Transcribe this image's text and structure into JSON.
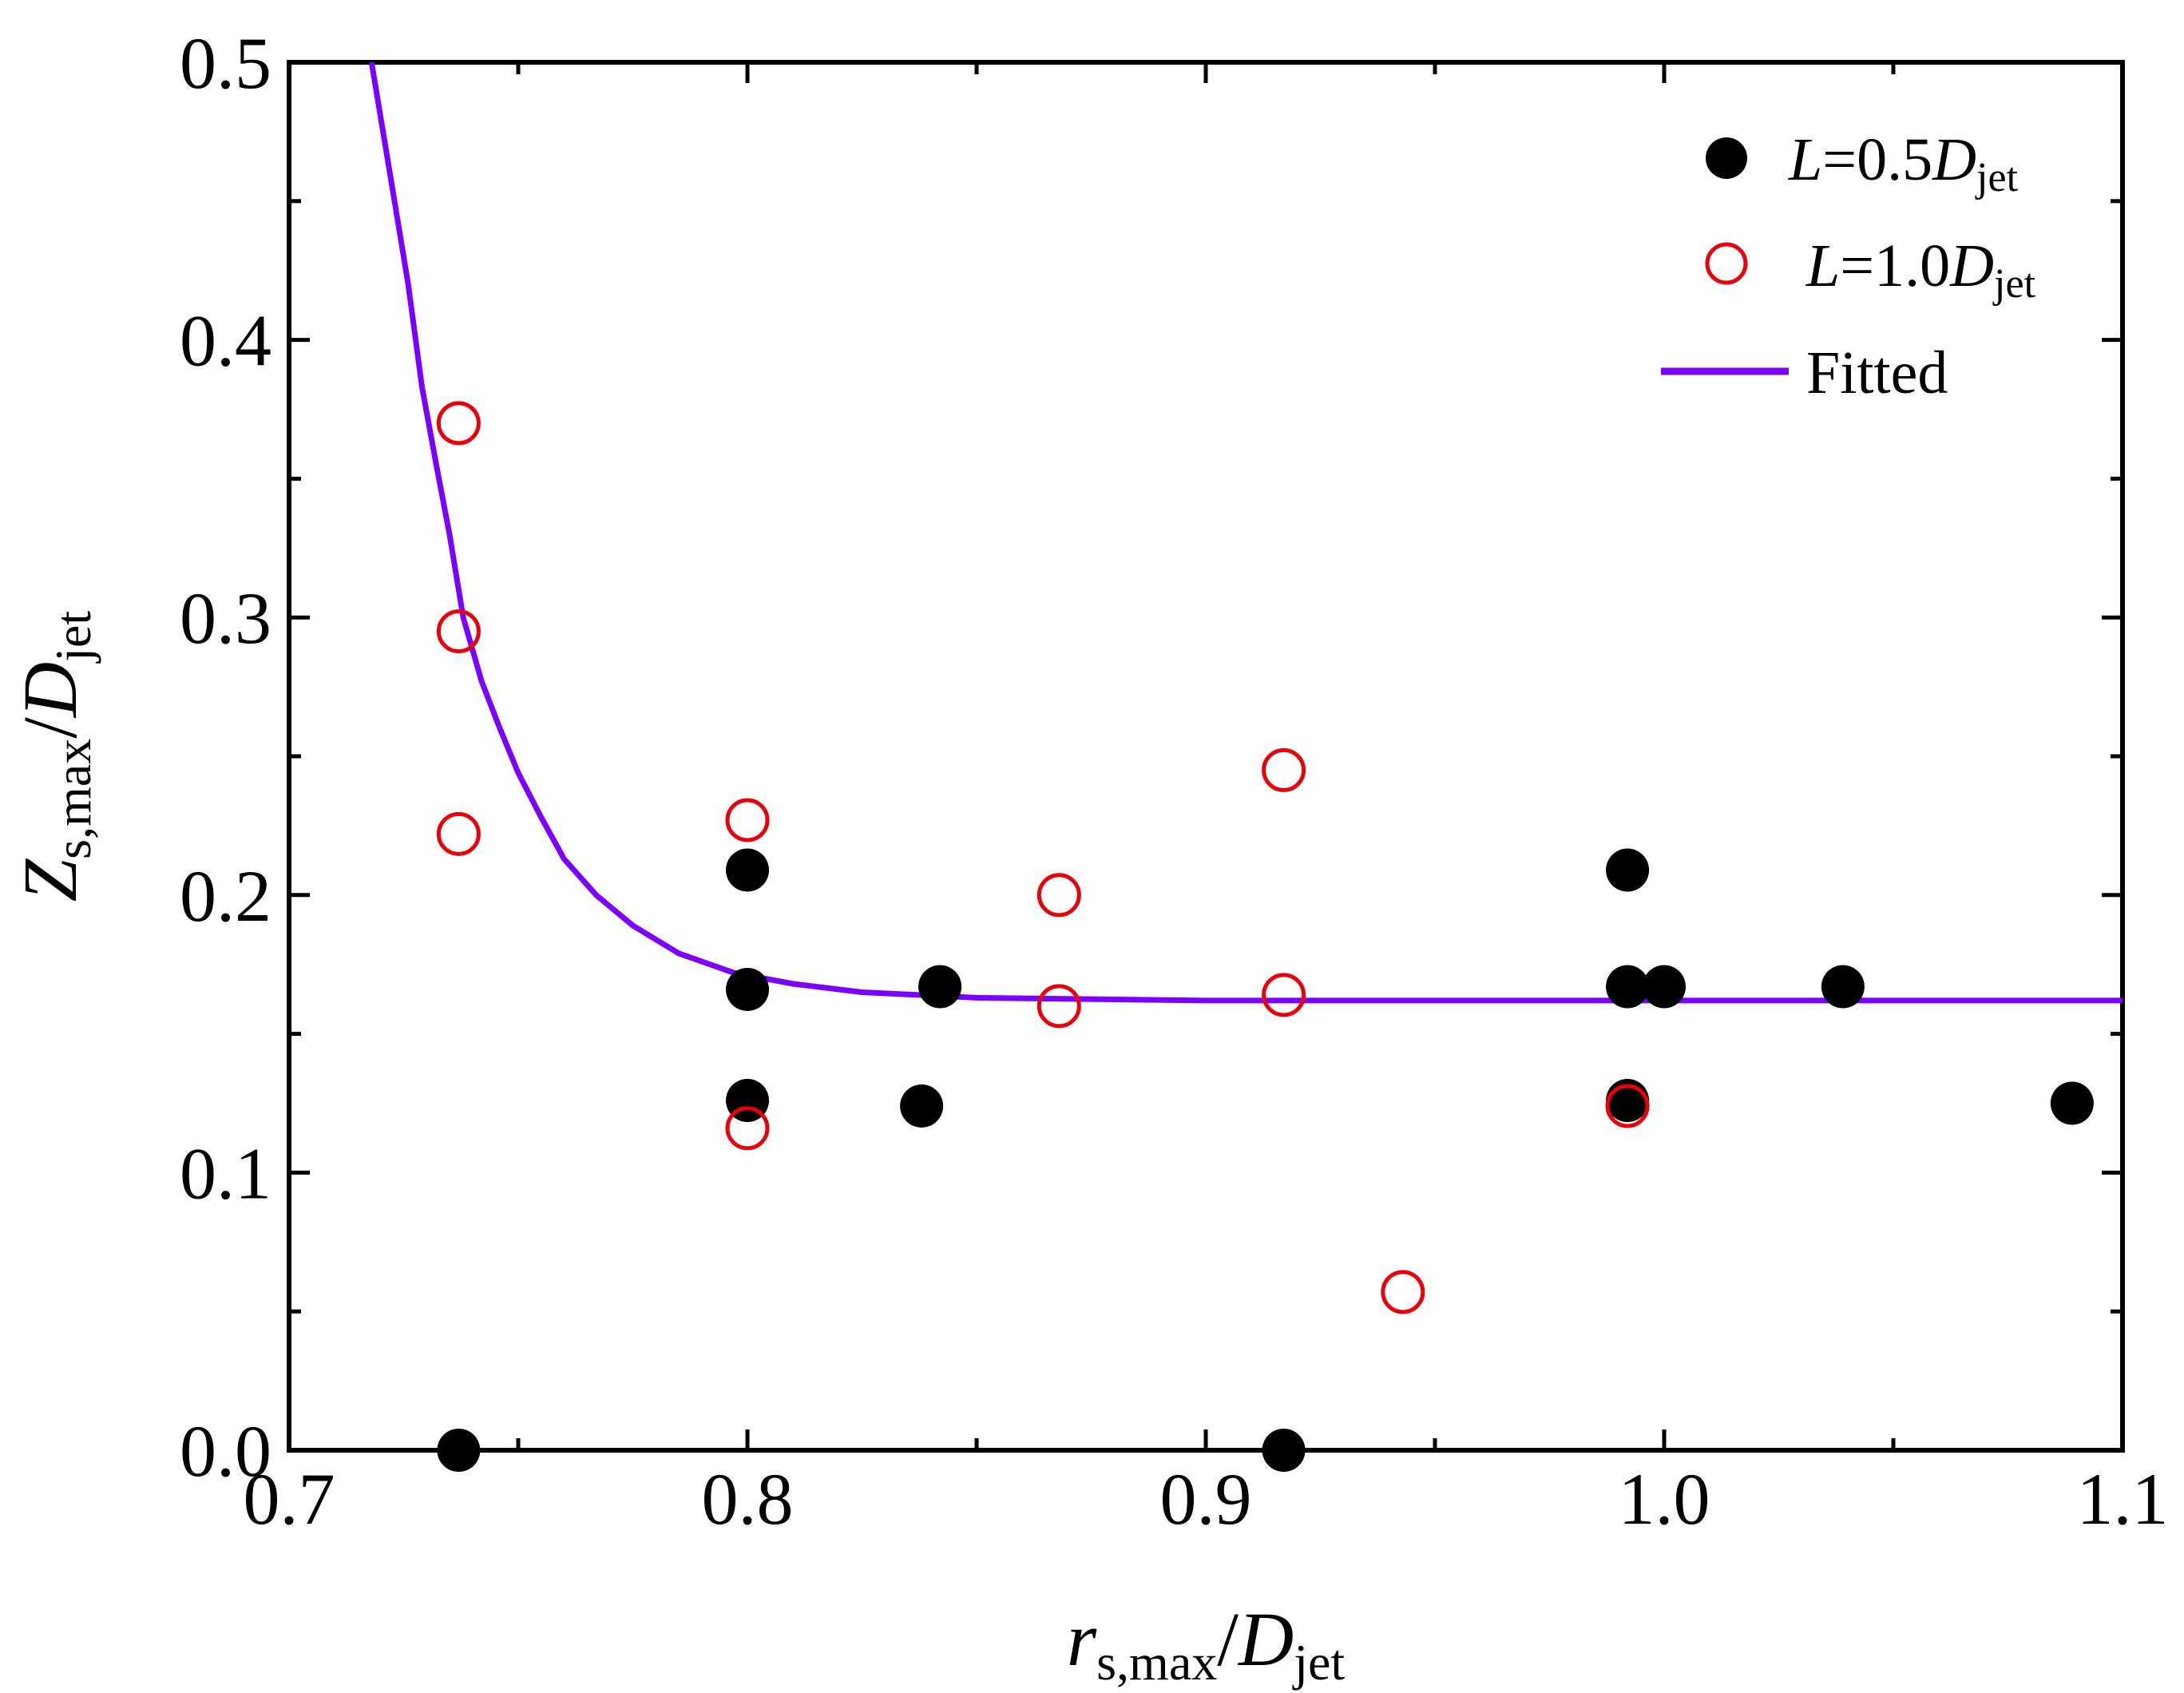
{
  "chart_data": {
    "type": "scatter",
    "xlim": [
      0.7,
      1.1
    ],
    "ylim": [
      0.0,
      0.5
    ],
    "x_ticks": [
      "0.7",
      "0.8",
      "0.9",
      "1.0",
      "1.1"
    ],
    "y_ticks": [
      "0.0",
      "0.1",
      "0.2",
      "0.3",
      "0.4",
      "0.5"
    ],
    "xlabel": {
      "main": "r",
      "sub": "s,max",
      "mid": "/",
      "main2": "D",
      "sub2": "jet"
    },
    "ylabel": {
      "main": "Z",
      "sub": "s,max",
      "mid": "/",
      "main2": "D",
      "sub2": "jet"
    },
    "legend_position": "top-right",
    "series": [
      {
        "name": "L=0.5Djet",
        "legend": {
          "italic1": "L",
          "text": "=0.5",
          "italic2": "D",
          "sub": "jet"
        },
        "marker": "filled-circle",
        "color": "#000000",
        "points": [
          [
            0.737,
            0.0
          ],
          [
            0.8,
            0.209
          ],
          [
            0.8,
            0.166
          ],
          [
            0.8,
            0.126
          ],
          [
            0.838,
            0.124
          ],
          [
            0.842,
            0.167
          ],
          [
            0.917,
            0.0
          ],
          [
            0.992,
            0.209
          ],
          [
            0.992,
            0.167
          ],
          [
            0.992,
            0.126
          ],
          [
            1.0,
            0.167
          ],
          [
            1.039,
            0.167
          ],
          [
            1.089,
            0.125
          ]
        ]
      },
      {
        "name": "L=1.0Djet",
        "legend": {
          "italic1": "L",
          "text": "=1.0",
          "italic2": "D",
          "sub": "jet"
        },
        "marker": "open-circle",
        "color": "#e8000b",
        "points": [
          [
            0.737,
            0.37
          ],
          [
            0.737,
            0.295
          ],
          [
            0.737,
            0.222
          ],
          [
            0.8,
            0.227
          ],
          [
            0.8,
            0.116
          ],
          [
            0.868,
            0.2
          ],
          [
            0.868,
            0.16
          ],
          [
            0.917,
            0.245
          ],
          [
            0.917,
            0.164
          ],
          [
            0.943,
            0.057
          ],
          [
            0.992,
            0.124
          ]
        ]
      },
      {
        "name": "Fitted",
        "legend": {
          "text": "Fitted"
        },
        "marker": "line",
        "color": "#7b00ff",
        "points": [
          [
            0.718,
            0.5
          ],
          [
            0.722,
            0.46
          ],
          [
            0.726,
            0.42
          ],
          [
            0.729,
            0.383
          ],
          [
            0.732,
            0.356
          ],
          [
            0.735,
            0.33
          ],
          [
            0.738,
            0.3
          ],
          [
            0.742,
            0.277
          ],
          [
            0.746,
            0.26
          ],
          [
            0.75,
            0.244
          ],
          [
            0.755,
            0.228
          ],
          [
            0.76,
            0.213
          ],
          [
            0.767,
            0.2
          ],
          [
            0.775,
            0.189
          ],
          [
            0.785,
            0.179
          ],
          [
            0.797,
            0.172
          ],
          [
            0.81,
            0.168
          ],
          [
            0.825,
            0.165
          ],
          [
            0.85,
            0.163
          ],
          [
            0.9,
            0.162
          ],
          [
            1.0,
            0.162
          ],
          [
            1.1,
            0.162
          ]
        ]
      }
    ]
  }
}
